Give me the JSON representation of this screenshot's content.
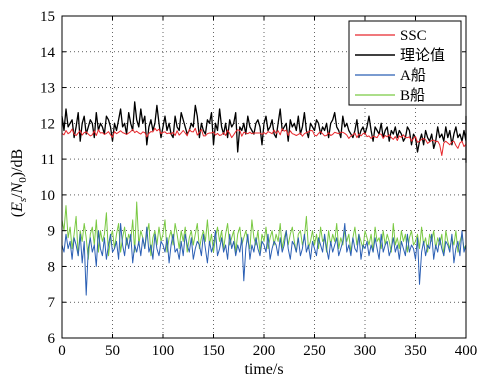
{
  "chart_data": {
    "type": "line",
    "xlabel": "time/s",
    "ylabel": "(E_s/N_0)/dB",
    "ylabel_parts": [
      "(",
      "E",
      "s",
      "/",
      "N",
      "0",
      ")/dB"
    ],
    "xlim": [
      0,
      400
    ],
    "ylim": [
      6,
      15
    ],
    "xticks": [
      0,
      50,
      100,
      150,
      200,
      250,
      300,
      350,
      400
    ],
    "yticks": [
      6,
      7,
      8,
      9,
      10,
      11,
      12,
      13,
      14,
      15
    ],
    "grid": true,
    "legend_position": "top-right",
    "x_step": 2,
    "series": [
      {
        "name": "SSC",
        "color": "#e8282d",
        "values": [
          11.72,
          11.68,
          11.8,
          11.71,
          11.75,
          11.84,
          11.7,
          11.66,
          11.73,
          11.8,
          11.67,
          11.74,
          11.76,
          11.7,
          11.65,
          11.68,
          11.79,
          11.66,
          11.82,
          11.73,
          11.74,
          11.69,
          11.72,
          11.77,
          11.68,
          11.61,
          11.77,
          11.71,
          11.75,
          11.79,
          11.74,
          11.72,
          11.69,
          11.73,
          11.77,
          11.83,
          11.74,
          11.78,
          11.73,
          11.7,
          11.76,
          11.74,
          11.62,
          11.72,
          11.77,
          11.76,
          11.86,
          11.79,
          11.84,
          11.71,
          11.75,
          11.76,
          11.71,
          11.73,
          11.7,
          11.75,
          11.66,
          11.79,
          11.67,
          11.73,
          11.8,
          11.73,
          11.65,
          11.83,
          11.77,
          11.76,
          11.86,
          11.67,
          11.75,
          11.83,
          11.65,
          11.65,
          11.71,
          11.73,
          11.73,
          11.76,
          11.67,
          11.72,
          11.66,
          11.68,
          11.74,
          11.66,
          11.81,
          11.72,
          11.6,
          11.68,
          11.77,
          11.82,
          11.8,
          11.64,
          11.75,
          11.73,
          11.71,
          11.75,
          11.71,
          11.73,
          11.73,
          11.73,
          11.73,
          11.69,
          11.74,
          11.7,
          11.77,
          11.74,
          11.71,
          11.81,
          11.72,
          11.79,
          11.68,
          11.85,
          11.78,
          11.81,
          11.66,
          11.79,
          11.71,
          11.69,
          11.66,
          11.69,
          11.73,
          11.64,
          11.71,
          11.74,
          11.76,
          11.8,
          11.79,
          11.67,
          11.65,
          11.72,
          11.77,
          11.71,
          11.65,
          11.66,
          11.74,
          11.66,
          11.69,
          11.75,
          11.73,
          11.71,
          11.75,
          11.75,
          11.72,
          11.67,
          11.58,
          11.65,
          11.68,
          11.73,
          11.6,
          11.7,
          11.65,
          11.71,
          11.73,
          11.63,
          11.65,
          11.58,
          11.64,
          11.62,
          11.6,
          11.7,
          11.7,
          11.58,
          11.66,
          11.62,
          11.68,
          11.6,
          11.55,
          11.63,
          11.52,
          11.65,
          11.61,
          11.68,
          11.6,
          11.6,
          11.62,
          11.5,
          11.58,
          11.63,
          11.47,
          11.5,
          11.55,
          11.58,
          11.54,
          11.44,
          11.48,
          11.52,
          11.53,
          11.48,
          11.5,
          11.4,
          11.1,
          11.45,
          11.5,
          11.45,
          11.4,
          11.48,
          11.5,
          11.38,
          11.3,
          11.45,
          11.5,
          11.35,
          11.42,
          11.35,
          11.4,
          11.45,
          11.3,
          11.25,
          11.35,
          11.05
        ]
      },
      {
        "name": "理论值",
        "color": "#000000",
        "values": [
          12.2,
          11.8,
          12.4,
          11.9,
          12.0,
          12.1,
          11.6,
          11.9,
          12.3,
          11.5,
          12.0,
          12.2,
          11.7,
          11.9,
          12.1,
          12.0,
          11.6,
          12.3,
          11.8,
          12.0,
          11.9,
          11.7,
          12.2,
          12.1,
          11.9,
          11.5,
          12.0,
          11.8,
          12.1,
          12.4,
          11.9,
          12.0,
          11.7,
          12.3,
          12.0,
          11.8,
          12.6,
          12.1,
          11.9,
          12.4,
          12.0,
          12.2,
          11.4,
          11.9,
          12.1,
          11.8,
          12.0,
          12.5,
          12.0,
          11.6,
          11.9,
          12.2,
          11.8,
          12.0,
          11.7,
          11.6,
          12.2,
          11.9,
          11.8,
          12.3,
          12.1,
          11.9,
          11.7,
          11.8,
          12.0,
          11.9,
          12.5,
          12.2,
          11.6,
          12.0,
          11.8,
          11.7,
          12.1,
          12.0,
          12.3,
          11.4,
          12.0,
          11.8,
          12.4,
          11.9,
          11.7,
          12.0,
          11.6,
          12.1,
          11.9,
          12.0,
          12.3,
          11.2,
          11.9,
          11.8,
          12.0,
          11.7,
          12.2,
          11.9,
          11.8,
          11.7,
          12.0,
          12.1,
          11.9,
          11.4,
          12.0,
          12.2,
          11.8,
          11.9,
          12.1,
          11.7,
          11.6,
          12.0,
          12.4,
          11.8,
          11.9,
          12.0,
          11.5,
          12.1,
          11.9,
          12.0,
          11.8,
          12.2,
          11.7,
          11.9,
          12.3,
          11.8,
          11.6,
          12.0,
          11.9,
          11.8,
          12.1,
          12.0,
          11.7,
          11.9,
          11.8,
          12.0,
          11.6,
          12.0,
          12.1,
          12.3,
          11.9,
          11.8,
          11.6,
          12.2,
          11.9,
          12.0,
          11.8,
          11.7,
          11.6,
          11.8,
          12.1,
          11.6,
          11.8,
          11.9,
          11.7,
          11.9,
          12.2,
          11.8,
          11.5,
          11.9,
          11.8,
          11.7,
          12.0,
          11.6,
          11.8,
          11.9,
          11.5,
          11.8,
          11.7,
          11.9,
          11.6,
          11.8,
          11.7,
          11.5,
          11.6,
          11.9,
          11.8,
          11.4,
          11.7,
          11.6,
          11.2,
          11.5,
          11.7,
          11.4,
          11.8,
          11.6,
          11.5,
          11.7,
          11.3,
          11.5,
          11.9,
          11.6,
          11.7,
          11.5,
          11.9,
          11.6,
          11.8,
          11.4,
          11.7,
          11.9,
          11.6,
          11.7,
          11.5,
          11.8,
          11.5,
          12.2,
          11.7,
          11.3,
          11.9,
          11.5,
          10.9
        ]
      },
      {
        "name": "A船",
        "color": "#2b5fb4",
        "values": [
          8.6,
          8.4,
          8.9,
          8.5,
          8.7,
          8.2,
          8.8,
          8.6,
          8.3,
          8.9,
          8.1,
          8.7,
          7.2,
          8.5,
          8.8,
          8.4,
          8.6,
          8.0,
          9.0,
          8.5,
          8.3,
          8.8,
          8.2,
          8.6,
          8.9,
          8.4,
          8.5,
          8.7,
          8.2,
          9.2,
          8.6,
          8.3,
          8.8,
          8.5,
          8.9,
          8.1,
          8.6,
          8.4,
          8.7,
          8.3,
          8.8,
          8.5,
          9.1,
          8.4,
          8.6,
          8.2,
          8.9,
          8.5,
          8.3,
          8.7,
          8.6,
          8.4,
          8.8,
          8.1,
          8.6,
          8.9,
          8.4,
          8.5,
          8.2,
          8.7,
          8.3,
          8.9,
          8.6,
          8.4,
          8.8,
          8.2,
          8.5,
          8.7,
          8.6,
          8.3,
          8.9,
          8.5,
          8.1,
          8.7,
          8.4,
          8.6,
          9.0,
          8.3,
          8.5,
          8.8,
          8.4,
          8.6,
          8.2,
          8.9,
          8.5,
          8.7,
          8.3,
          8.6,
          8.4,
          8.8,
          7.6,
          8.5,
          8.9,
          8.2,
          8.6,
          8.4,
          8.8,
          8.5,
          8.3,
          8.7,
          8.6,
          8.4,
          8.9,
          8.2,
          8.5,
          8.7,
          8.6,
          8.3,
          8.8,
          8.4,
          8.6,
          9.0,
          8.5,
          8.2,
          8.7,
          8.6,
          8.4,
          8.8,
          8.3,
          8.5,
          8.9,
          8.4,
          8.6,
          8.2,
          8.7,
          8.5,
          8.3,
          8.8,
          8.6,
          8.4,
          8.9,
          8.5,
          8.2,
          8.7,
          8.4,
          8.6,
          8.8,
          8.3,
          8.5,
          8.7,
          9.2,
          8.4,
          8.6,
          8.3,
          8.8,
          8.5,
          8.4,
          8.9,
          8.2,
          8.6,
          8.5,
          8.7,
          8.3,
          8.6,
          8.4,
          8.8,
          8.5,
          8.2,
          8.9,
          8.4,
          8.6,
          8.7,
          8.3,
          8.5,
          8.8,
          8.4,
          8.6,
          8.2,
          8.7,
          8.5,
          8.3,
          8.9,
          8.4,
          8.6,
          8.5,
          8.2,
          8.8,
          7.5,
          8.4,
          8.7,
          8.3,
          8.6,
          8.5,
          8.9,
          8.2,
          8.6,
          8.4,
          8.8,
          8.5,
          8.3,
          8.7,
          8.6,
          8.4,
          8.9,
          8.1,
          8.5,
          8.7,
          8.3,
          9.0,
          8.4,
          8.6,
          8.2,
          8.8,
          7.8,
          8.5,
          8.1
        ]
      },
      {
        "name": "B船",
        "color": "#7ac943",
        "values": [
          9.3,
          9.0,
          9.7,
          8.8,
          9.1,
          8.5,
          8.9,
          9.4,
          8.3,
          9.0,
          8.7,
          9.2,
          8.8,
          8.2,
          8.9,
          9.1,
          8.6,
          9.3,
          8.4,
          9.0,
          8.7,
          8.9,
          9.5,
          8.3,
          8.8,
          9.0,
          8.5,
          8.9,
          9.2,
          8.4,
          8.8,
          9.1,
          8.6,
          8.9,
          8.7,
          9.3,
          8.4,
          9.8,
          8.6,
          9.0,
          8.8,
          8.5,
          8.9,
          9.2,
          8.3,
          8.8,
          9.0,
          8.6,
          9.1,
          8.7,
          8.9,
          9.3,
          8.4,
          8.8,
          9.0,
          8.6,
          9.2,
          8.9,
          8.5,
          9.0,
          8.7,
          9.1,
          8.4,
          8.8,
          9.0,
          8.6,
          8.9,
          9.2,
          8.5,
          8.8,
          9.0,
          8.7,
          9.3,
          8.6,
          8.9,
          8.4,
          8.8,
          9.1,
          8.7,
          9.0,
          8.5,
          8.9,
          9.2,
          8.6,
          8.8,
          9.0,
          8.4,
          8.9,
          9.1,
          8.6,
          8.8,
          9.0,
          8.7,
          8.5,
          9.3,
          8.8,
          8.6,
          9.0,
          8.4,
          8.9,
          8.7,
          9.1,
          8.5,
          8.8,
          9.0,
          8.6,
          8.9,
          8.7,
          9.2,
          8.5,
          8.8,
          9.0,
          8.6,
          8.9,
          9.1,
          8.7,
          8.4,
          8.9,
          9.0,
          8.6,
          8.8,
          9.4,
          8.5,
          8.7,
          9.0,
          8.6,
          8.9,
          8.5,
          9.1,
          8.7,
          8.8,
          8.4,
          9.0,
          8.6,
          8.9,
          8.7,
          9.2,
          8.5,
          8.8,
          8.6,
          9.0,
          8.7,
          8.9,
          8.4,
          8.8,
          9.1,
          8.6,
          8.9,
          8.7,
          8.5,
          9.0,
          8.8,
          8.6,
          8.9,
          8.4,
          9.1,
          8.7,
          8.8,
          8.5,
          9.0,
          8.6,
          8.9,
          8.7,
          8.4,
          9.2,
          8.6,
          8.8,
          8.5,
          9.0,
          8.7,
          8.9,
          8.4,
          8.8,
          9.0,
          8.6,
          8.7,
          8.9,
          8.5,
          9.1,
          8.6,
          8.8,
          8.4,
          8.9,
          8.7,
          9.0,
          8.5,
          8.8,
          8.6,
          8.9,
          8.3,
          9.0,
          8.7,
          8.5,
          8.8,
          8.6,
          9.0,
          8.4,
          8.7,
          8.9,
          8.5,
          8.6,
          8.8,
          8.3,
          8.9,
          7.7
        ]
      }
    ]
  }
}
